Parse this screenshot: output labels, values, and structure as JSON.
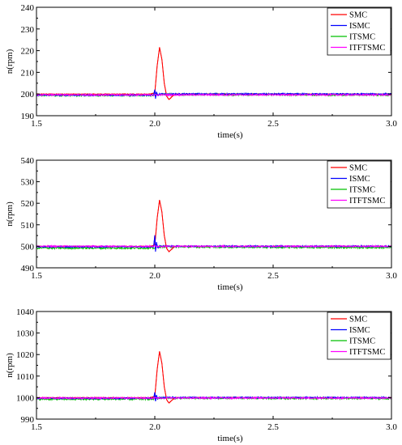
{
  "colors": {
    "SMC": "#ff0000",
    "ISMC": "#0000ff",
    "ITSMC": "#00c000",
    "ITFTSMC": "#ff00ff",
    "axis": "#000000"
  },
  "chart_data": [
    {
      "type": "line",
      "title": "",
      "xlabel": "time(s)",
      "ylabel": "n(rpm)",
      "xlim": [
        1.5,
        3.0
      ],
      "ylim": [
        190,
        240
      ],
      "xticks": [
        1.5,
        2.0,
        2.5,
        3.0
      ],
      "xtick_labels": [
        "1.5",
        "2.0",
        "2.5",
        "3.0"
      ],
      "yticks": [
        190,
        200,
        210,
        220,
        230,
        240
      ],
      "yticks_labels": [
        "190",
        "200",
        "210",
        "220",
        "230",
        "240"
      ],
      "grid": false,
      "legend": "top-right",
      "series": [
        {
          "name": "SMC",
          "x": [
            1.5,
            1.98,
            2.0,
            2.01,
            2.02,
            2.03,
            2.04,
            2.05,
            2.06,
            2.07,
            2.08,
            2.09,
            2.1,
            3.0
          ],
          "y": [
            200,
            200,
            200.5,
            213,
            221.5,
            216,
            205,
            199,
            197.5,
            198.5,
            199.5,
            200,
            200,
            200
          ]
        },
        {
          "name": "ISMC",
          "x": [
            1.5,
            1.995,
            2.0,
            2.003,
            2.007,
            2.012,
            2.02,
            3.0
          ],
          "y": [
            199.5,
            199.5,
            202,
            197.8,
            201,
            199.3,
            200,
            200
          ]
        },
        {
          "name": "ITSMC",
          "x": [
            1.5,
            2.0,
            2.01,
            3.0
          ],
          "y": [
            199.4,
            199.4,
            199.8,
            199.6
          ]
        },
        {
          "name": "ITFTSMC",
          "x": [
            1.5,
            2.0,
            3.0
          ],
          "y": [
            199.6,
            199.6,
            199.6
          ]
        }
      ]
    },
    {
      "type": "line",
      "title": "",
      "xlabel": "time(s)",
      "ylabel": "n(rpm)",
      "xlim": [
        1.5,
        3.0
      ],
      "ylim": [
        490,
        540
      ],
      "xticks": [
        1.5,
        2.0,
        2.5,
        3.0
      ],
      "xtick_labels": [
        "1.5",
        "2.0",
        "2.5",
        "3.0"
      ],
      "yticks": [
        490,
        500,
        510,
        520,
        530,
        540
      ],
      "yticks_labels": [
        "490",
        "500",
        "510",
        "520",
        "530",
        "540"
      ],
      "grid": false,
      "legend": "top-right",
      "series": [
        {
          "name": "SMC",
          "x": [
            1.5,
            1.98,
            2.0,
            2.01,
            2.02,
            2.03,
            2.04,
            2.05,
            2.06,
            2.07,
            2.08,
            2.09,
            2.1,
            3.0
          ],
          "y": [
            500,
            500,
            500.5,
            513,
            521.5,
            516,
            505,
            499,
            497.5,
            498.5,
            499.5,
            500,
            500,
            500
          ]
        },
        {
          "name": "ISMC",
          "x": [
            1.5,
            1.995,
            2.0,
            2.003,
            2.007,
            2.012,
            2.02,
            3.0
          ],
          "y": [
            499.8,
            499.8,
            505,
            497.5,
            502,
            499.3,
            500,
            500
          ]
        },
        {
          "name": "ITSMC",
          "x": [
            1.5,
            2.0,
            2.01,
            3.0
          ],
          "y": [
            499.2,
            499.2,
            499.8,
            499.4
          ]
        },
        {
          "name": "ITFTSMC",
          "x": [
            1.5,
            2.0,
            3.0
          ],
          "y": [
            500,
            500,
            500
          ]
        }
      ]
    },
    {
      "type": "line",
      "title": "",
      "xlabel": "time(s)",
      "ylabel": "n(rpm)",
      "xlim": [
        1.5,
        3.0
      ],
      "ylim": [
        990,
        1040
      ],
      "xticks": [
        1.5,
        2.0,
        2.5,
        3.0
      ],
      "xtick_labels": [
        "1.5",
        "2.0",
        "2.5",
        "3.0"
      ],
      "yticks": [
        990,
        1000,
        1010,
        1020,
        1030,
        1040
      ],
      "yticks_labels": [
        "990",
        "1000",
        "1010",
        "1020",
        "1030",
        "1040"
      ],
      "grid": false,
      "legend": "top-right",
      "series": [
        {
          "name": "SMC",
          "x": [
            1.5,
            1.98,
            2.0,
            2.01,
            2.02,
            2.03,
            2.04,
            2.05,
            2.06,
            2.07,
            2.08,
            2.09,
            2.1,
            3.0
          ],
          "y": [
            1000,
            1000,
            1000.5,
            1013,
            1021.5,
            1016,
            1005,
            999,
            997.5,
            998.5,
            999.5,
            1000,
            1000,
            1000
          ]
        },
        {
          "name": "ISMC",
          "x": [
            1.5,
            1.995,
            2.0,
            2.003,
            2.007,
            2.012,
            2.02,
            3.0
          ],
          "y": [
            999.7,
            999.7,
            1002.5,
            998.3,
            1001.2,
            999.4,
            1000,
            1000
          ]
        },
        {
          "name": "ITSMC",
          "x": [
            1.5,
            2.0,
            2.01,
            3.0
          ],
          "y": [
            999.3,
            999.3,
            999.8,
            999.6
          ]
        },
        {
          "name": "ITFTSMC",
          "x": [
            1.5,
            2.0,
            3.0
          ],
          "y": [
            999.8,
            999.8,
            999.8
          ]
        }
      ]
    }
  ]
}
